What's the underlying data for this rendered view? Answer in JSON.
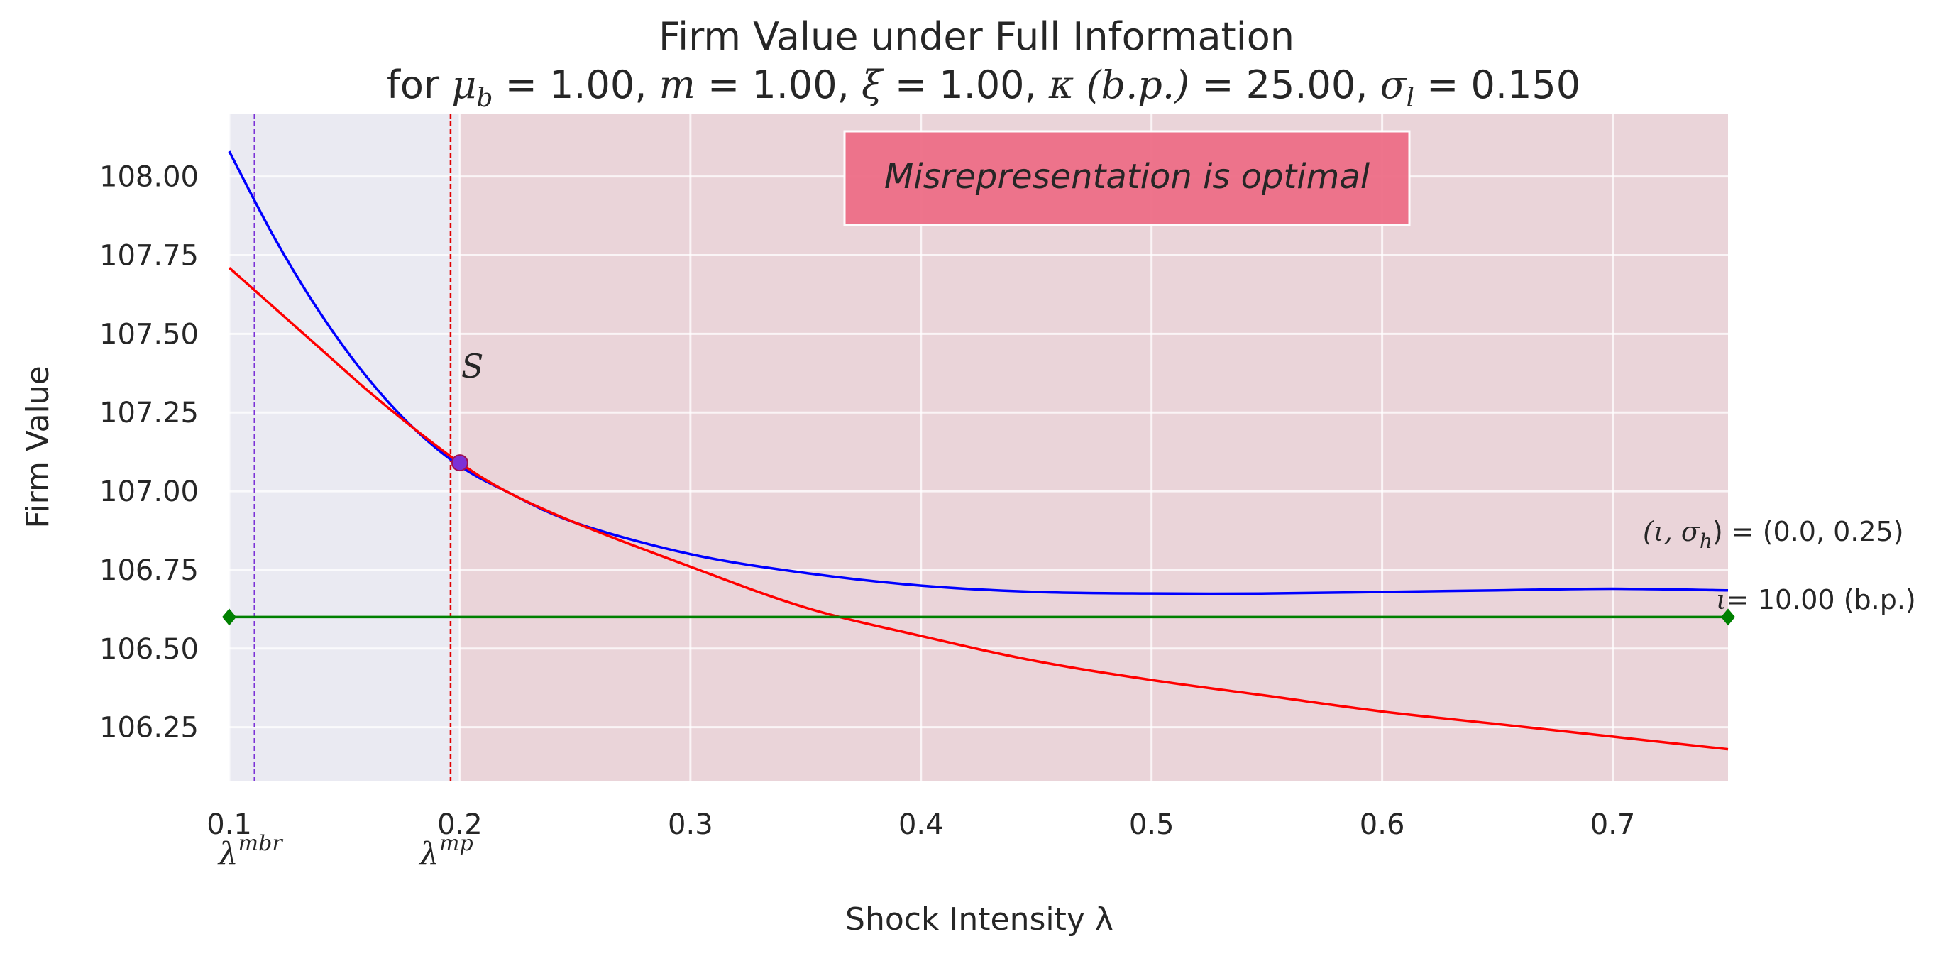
{
  "chart_data": {
    "type": "line",
    "title_line1": "Firm Value under Full Information",
    "title_line2": {
      "prefix": "for ",
      "parts": [
        {
          "sym": "μ",
          "sub": "b",
          "value": "1.00"
        },
        {
          "sym": "m",
          "sub": "",
          "value": "1.00"
        },
        {
          "sym": "ξ",
          "sub": "",
          "value": "1.00"
        },
        {
          "sym": "κ (b.p.)",
          "sub": "",
          "value": "25.00"
        },
        {
          "sym": "σ",
          "sub": "l",
          "value": "0.150"
        }
      ]
    },
    "xlabel": "Shock Intensity λ",
    "ylabel": "Firm Value",
    "xlim": [
      0.1,
      0.75
    ],
    "ylim": [
      106.08,
      108.2
    ],
    "xticks": [
      0.1,
      0.2,
      0.3,
      0.4,
      0.5,
      0.6,
      0.7
    ],
    "xtick_labels": [
      "0.1",
      "0.2",
      "0.3",
      "0.4",
      "0.5",
      "0.6",
      "0.7"
    ],
    "yticks": [
      106.25,
      106.5,
      106.75,
      107.0,
      107.25,
      107.5,
      107.75,
      108.0
    ],
    "ytick_labels": [
      "106.25",
      "106.50",
      "106.75",
      "107.00",
      "107.25",
      "107.50",
      "107.75",
      "108.00"
    ],
    "grid": true,
    "regions": [
      {
        "x0": 0.1,
        "x1": 0.2,
        "color": "#eaeaf2"
      },
      {
        "x0": 0.2,
        "x1": 0.75,
        "color": "#ead4d9"
      }
    ],
    "series": [
      {
        "color": "#0000ff",
        "x": [
          0.1,
          0.12,
          0.14,
          0.16,
          0.18,
          0.2,
          0.22,
          0.25,
          0.3,
          0.35,
          0.4,
          0.45,
          0.5,
          0.55,
          0.6,
          0.65,
          0.7,
          0.75
        ],
        "y": [
          108.08,
          107.8,
          107.56,
          107.36,
          107.2,
          107.08,
          107.0,
          106.9,
          106.8,
          106.74,
          106.7,
          106.68,
          106.675,
          106.675,
          106.68,
          106.685,
          106.69,
          106.685
        ]
      },
      {
        "color": "#ff0000",
        "x": [
          0.1,
          0.12,
          0.14,
          0.16,
          0.18,
          0.2,
          0.22,
          0.25,
          0.3,
          0.35,
          0.4,
          0.45,
          0.5,
          0.55,
          0.6,
          0.65,
          0.7,
          0.75
        ],
        "y": [
          107.71,
          107.58,
          107.45,
          107.32,
          107.2,
          107.09,
          107.0,
          106.9,
          106.76,
          106.63,
          106.54,
          106.46,
          106.4,
          106.35,
          106.3,
          106.26,
          106.22,
          106.18
        ]
      },
      {
        "color": "#008000",
        "x": [
          0.1,
          0.75
        ],
        "y": [
          106.6,
          106.6
        ]
      }
    ],
    "vlines": [
      {
        "x": 0.111,
        "color": "#7b32d6",
        "label_sym": "λ",
        "label_sup": "mbr"
      },
      {
        "x": 0.196,
        "color": "#e00000",
        "label_sym": "λ",
        "label_sup": "mp"
      }
    ],
    "point": {
      "x": 0.2,
      "y": 107.09,
      "label": "S",
      "color": "#7b32d6"
    },
    "annotations": {
      "box_text": "Misrepresentation is optimal",
      "box_color": "#ee6e87",
      "right_label1": {
        "sym": "(ι, σ",
        "sub": "h",
        "rest": ") = (0.0, 0.25)"
      },
      "right_label2": {
        "sym": "ι",
        "rest": "= 10.00 (b.p.)"
      }
    }
  }
}
